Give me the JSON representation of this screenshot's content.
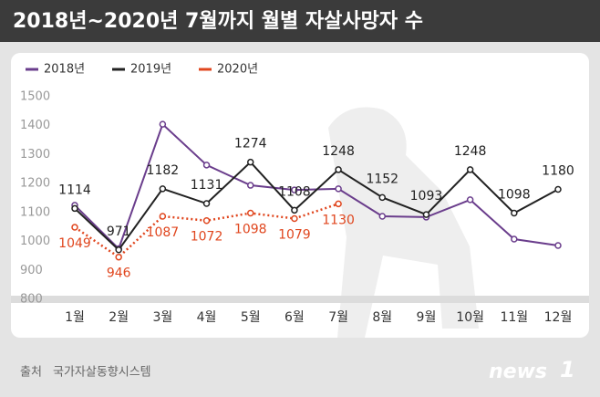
{
  "chart_data": {
    "type": "line",
    "title": "2018년~2020년 7월까지 월별 자살사망자 수",
    "categories": [
      "1월",
      "2월",
      "3월",
      "4월",
      "5월",
      "6월",
      "7월",
      "8월",
      "9월",
      "10월",
      "11월",
      "12월"
    ],
    "series": [
      {
        "name": "2018년",
        "color": "#6a3d8c",
        "values": [
          1125,
          975,
          1405,
          1264,
          1194,
          1178,
          1182,
          1087,
          1084,
          1144,
          1008,
          986
        ]
      },
      {
        "name": "2019년",
        "color": "#222222",
        "values": [
          1114,
          971,
          1182,
          1131,
          1274,
          1108,
          1248,
          1152,
          1093,
          1248,
          1098,
          1180
        ],
        "labels": true
      },
      {
        "name": "2020년",
        "color": "#e0461e",
        "dotted": true,
        "values": [
          1049,
          946,
          1087,
          1072,
          1098,
          1079,
          1130,
          null,
          null,
          null,
          null,
          null
        ],
        "labels": true
      }
    ],
    "ylim": [
      800,
      1500
    ],
    "yticks": [
      800,
      900,
      1000,
      1100,
      1200,
      1300,
      1400,
      1500
    ],
    "grid": false,
    "source_label": "출처",
    "source": "국가자살동향시스템",
    "logo": "news",
    "logo_mark": "1"
  }
}
